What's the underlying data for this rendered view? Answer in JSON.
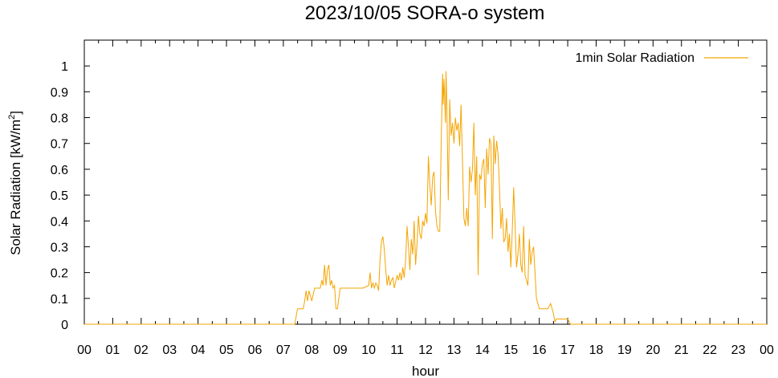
{
  "chart_data": {
    "type": "line",
    "title": "2023/10/05 SORA-o system",
    "xlabel": "hour",
    "ylabel_main": "Solar Radiation [kW/m",
    "ylabel_sup": "2",
    "ylabel_close": "]",
    "xlim": [
      0,
      24
    ],
    "ylim": [
      0,
      1.1
    ],
    "x_ticks": [
      "00",
      "01",
      "02",
      "03",
      "04",
      "05",
      "06",
      "07",
      "08",
      "09",
      "10",
      "11",
      "12",
      "13",
      "14",
      "15",
      "16",
      "17",
      "18",
      "19",
      "20",
      "21",
      "22",
      "23",
      "00"
    ],
    "y_ticks": [
      "0",
      "0.1",
      "0.2",
      "0.3",
      "0.4",
      "0.5",
      "0.6",
      "0.7",
      "0.8",
      "0.9",
      "1"
    ],
    "legend_position": "top-right",
    "grid": false,
    "series": [
      {
        "name": "1min Solar Radiation",
        "color": "#f5a400",
        "x": [
          0,
          7.4,
          7.5,
          7.55,
          7.7,
          7.75,
          7.8,
          7.85,
          7.9,
          8.0,
          8.1,
          8.2,
          8.3,
          8.35,
          8.4,
          8.45,
          8.5,
          8.55,
          8.6,
          8.65,
          8.7,
          8.75,
          8.8,
          8.85,
          8.9,
          9.0,
          9.2,
          9.4,
          9.6,
          9.8,
          10.0,
          10.05,
          10.1,
          10.15,
          10.2,
          10.25,
          10.3,
          10.35,
          10.4,
          10.45,
          10.5,
          10.55,
          10.6,
          10.65,
          10.7,
          10.75,
          10.8,
          10.85,
          10.9,
          11.0,
          11.05,
          11.1,
          11.15,
          11.2,
          11.25,
          11.3,
          11.35,
          11.4,
          11.45,
          11.5,
          11.55,
          11.6,
          11.65,
          11.7,
          11.75,
          11.8,
          11.85,
          11.9,
          11.95,
          12.0,
          12.05,
          12.1,
          12.15,
          12.2,
          12.25,
          12.3,
          12.35,
          12.4,
          12.45,
          12.5,
          12.55,
          12.6,
          12.62,
          12.65,
          12.7,
          12.72,
          12.75,
          12.8,
          12.85,
          12.9,
          12.95,
          13.0,
          13.05,
          13.1,
          13.15,
          13.2,
          13.25,
          13.3,
          13.35,
          13.4,
          13.45,
          13.5,
          13.55,
          13.6,
          13.65,
          13.7,
          13.75,
          13.8,
          13.85,
          13.9,
          13.95,
          14.0,
          14.05,
          14.1,
          14.15,
          14.2,
          14.25,
          14.3,
          14.35,
          14.4,
          14.45,
          14.5,
          14.55,
          14.6,
          14.65,
          14.7,
          14.75,
          14.8,
          14.85,
          14.9,
          14.95,
          15.0,
          15.05,
          15.1,
          15.15,
          15.2,
          15.25,
          15.3,
          15.35,
          15.4,
          15.45,
          15.5,
          15.55,
          15.6,
          15.65,
          15.7,
          15.75,
          15.8,
          15.85,
          15.9,
          16.0,
          16.1,
          16.2,
          16.3,
          16.4,
          16.5,
          16.55,
          16.6,
          16.8,
          17.0,
          17.05,
          17.1,
          24
        ],
        "y": [
          0,
          0,
          0.06,
          0.06,
          0.06,
          0.09,
          0.13,
          0.09,
          0.13,
          0.09,
          0.14,
          0.14,
          0.14,
          0.17,
          0.15,
          0.23,
          0.15,
          0.21,
          0.23,
          0.15,
          0.17,
          0.14,
          0.15,
          0.06,
          0.06,
          0.14,
          0.14,
          0.14,
          0.14,
          0.14,
          0.15,
          0.2,
          0.14,
          0.16,
          0.14,
          0.16,
          0.15,
          0.13,
          0.25,
          0.32,
          0.34,
          0.29,
          0.21,
          0.15,
          0.19,
          0.15,
          0.17,
          0.18,
          0.14,
          0.19,
          0.17,
          0.2,
          0.17,
          0.22,
          0.18,
          0.25,
          0.38,
          0.3,
          0.21,
          0.33,
          0.27,
          0.4,
          0.23,
          0.31,
          0.42,
          0.35,
          0.33,
          0.4,
          0.38,
          0.43,
          0.39,
          0.65,
          0.54,
          0.46,
          0.57,
          0.59,
          0.44,
          0.38,
          0.36,
          0.36,
          0.7,
          0.97,
          0.85,
          0.95,
          0.78,
          0.98,
          0.85,
          0.48,
          0.87,
          0.73,
          0.78,
          0.7,
          0.8,
          0.75,
          0.78,
          0.69,
          0.85,
          0.63,
          0.41,
          0.38,
          0.45,
          0.38,
          0.61,
          0.55,
          0.6,
          0.78,
          0.5,
          0.65,
          0.19,
          0.58,
          0.56,
          0.62,
          0.64,
          0.45,
          0.68,
          0.58,
          0.72,
          0.7,
          0.33,
          0.73,
          0.62,
          0.71,
          0.66,
          0.53,
          0.37,
          0.45,
          0.32,
          0.33,
          0.41,
          0.28,
          0.35,
          0.22,
          0.36,
          0.53,
          0.38,
          0.22,
          0.27,
          0.35,
          0.23,
          0.2,
          0.38,
          0.19,
          0.17,
          0.15,
          0.33,
          0.23,
          0.28,
          0.3,
          0.2,
          0.1,
          0.06,
          0.06,
          0.06,
          0.06,
          0.08,
          0.04,
          0.01,
          0.02,
          0.02,
          0.02,
          0.01,
          0,
          0
        ]
      }
    ]
  }
}
